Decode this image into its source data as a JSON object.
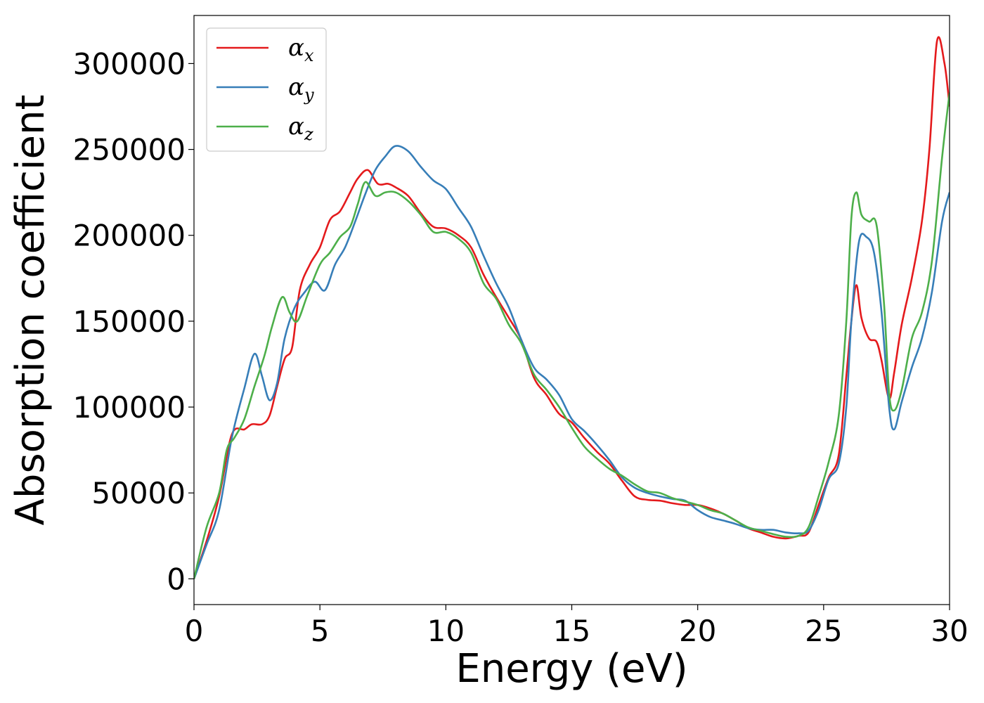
{
  "chart_data": {
    "type": "line",
    "title": "",
    "xlabel": "Energy (eV)",
    "ylabel": "Absorption coefficient",
    "xlim": [
      0,
      30
    ],
    "ylim": [
      -15000,
      328000
    ],
    "xticks": [
      0,
      5,
      10,
      15,
      20,
      25,
      30
    ],
    "xtick_labels": [
      "0",
      "5",
      "10",
      "15",
      "20",
      "25",
      "30"
    ],
    "yticks": [
      0,
      50000,
      100000,
      150000,
      200000,
      250000,
      300000
    ],
    "ytick_labels": [
      "0",
      "50000",
      "100000",
      "150000",
      "200000",
      "250000",
      "300000"
    ],
    "grid": false,
    "legend_position": "top-left",
    "legend": [
      {
        "symbol": "α",
        "sub": "x",
        "color": "#e41a1c"
      },
      {
        "symbol": "α",
        "sub": "y",
        "color": "#377eb8"
      },
      {
        "symbol": "α",
        "sub": "z",
        "color": "#4daf4a"
      }
    ],
    "series": [
      {
        "color": "#e41a1c",
        "points": [
          [
            0,
            0
          ],
          [
            0.5,
            22000
          ],
          [
            1,
            48000
          ],
          [
            1.5,
            84000
          ],
          [
            2,
            87000
          ],
          [
            2.3,
            90000
          ],
          [
            2.7,
            90000
          ],
          [
            3,
            95000
          ],
          [
            3.3,
            112000
          ],
          [
            3.6,
            128000
          ],
          [
            3.9,
            135000
          ],
          [
            4.2,
            168000
          ],
          [
            4.6,
            183000
          ],
          [
            5,
            193000
          ],
          [
            5.4,
            209000
          ],
          [
            5.8,
            214000
          ],
          [
            6.2,
            225000
          ],
          [
            6.5,
            233000
          ],
          [
            6.9,
            238000
          ],
          [
            7.3,
            230000
          ],
          [
            7.7,
            230000
          ],
          [
            8,
            228000
          ],
          [
            8.5,
            223000
          ],
          [
            9,
            213000
          ],
          [
            9.5,
            205000
          ],
          [
            10,
            204000
          ],
          [
            10.5,
            200000
          ],
          [
            11,
            193000
          ],
          [
            11.5,
            177000
          ],
          [
            12,
            164000
          ],
          [
            12.5,
            152000
          ],
          [
            13,
            139000
          ],
          [
            13.5,
            117000
          ],
          [
            14,
            107000
          ],
          [
            14.5,
            96000
          ],
          [
            15,
            91000
          ],
          [
            15.5,
            82000
          ],
          [
            16,
            74000
          ],
          [
            16.5,
            67000
          ],
          [
            17,
            57000
          ],
          [
            17.5,
            48000
          ],
          [
            18,
            46000
          ],
          [
            18.5,
            45500
          ],
          [
            19,
            44000
          ],
          [
            19.5,
            43000
          ],
          [
            20,
            43000
          ],
          [
            20.5,
            41000
          ],
          [
            21,
            38000
          ],
          [
            21.5,
            34000
          ],
          [
            22,
            29500
          ],
          [
            22.5,
            27000
          ],
          [
            23,
            24500
          ],
          [
            23.5,
            23500
          ],
          [
            24,
            25000
          ],
          [
            24.4,
            27000
          ],
          [
            24.8,
            43000
          ],
          [
            25.2,
            59000
          ],
          [
            25.6,
            72000
          ],
          [
            25.9,
            118000
          ],
          [
            26.1,
            150000
          ],
          [
            26.3,
            171000
          ],
          [
            26.5,
            152000
          ],
          [
            26.8,
            140000
          ],
          [
            27.1,
            138000
          ],
          [
            27.3,
            127000
          ],
          [
            27.6,
            105000
          ],
          [
            27.8,
            120000
          ],
          [
            28.1,
            148000
          ],
          [
            28.5,
            175000
          ],
          [
            28.9,
            208000
          ],
          [
            29.2,
            250000
          ],
          [
            29.5,
            313000
          ],
          [
            29.8,
            300000
          ],
          [
            30,
            275000
          ]
        ]
      },
      {
        "color": "#377eb8",
        "points": [
          [
            0,
            0
          ],
          [
            0.5,
            20000
          ],
          [
            1,
            40000
          ],
          [
            1.5,
            82000
          ],
          [
            2,
            111000
          ],
          [
            2.4,
            131000
          ],
          [
            2.7,
            118000
          ],
          [
            3,
            104000
          ],
          [
            3.3,
            114000
          ],
          [
            3.6,
            140000
          ],
          [
            4,
            158000
          ],
          [
            4.4,
            167000
          ],
          [
            4.8,
            173000
          ],
          [
            5.2,
            168000
          ],
          [
            5.6,
            183000
          ],
          [
            6,
            193000
          ],
          [
            6.4,
            208000
          ],
          [
            6.8,
            224000
          ],
          [
            7.2,
            238000
          ],
          [
            7.6,
            246000
          ],
          [
            8,
            252000
          ],
          [
            8.5,
            249000
          ],
          [
            9,
            240000
          ],
          [
            9.5,
            232000
          ],
          [
            10,
            227000
          ],
          [
            10.5,
            216000
          ],
          [
            11,
            205000
          ],
          [
            11.5,
            188000
          ],
          [
            12,
            172000
          ],
          [
            12.5,
            158000
          ],
          [
            13,
            139000
          ],
          [
            13.5,
            123000
          ],
          [
            14,
            116000
          ],
          [
            14.5,
            107000
          ],
          [
            15,
            93000
          ],
          [
            15.5,
            86000
          ],
          [
            16,
            78000
          ],
          [
            16.5,
            69000
          ],
          [
            17,
            59000
          ],
          [
            17.5,
            53000
          ],
          [
            18,
            50000
          ],
          [
            18.5,
            48000
          ],
          [
            19,
            46500
          ],
          [
            19.5,
            45500
          ],
          [
            20,
            40000
          ],
          [
            20.5,
            36000
          ],
          [
            21,
            34000
          ],
          [
            21.5,
            32000
          ],
          [
            22,
            29500
          ],
          [
            22.5,
            28500
          ],
          [
            23,
            28500
          ],
          [
            23.5,
            27000
          ],
          [
            24,
            26500
          ],
          [
            24.4,
            28000
          ],
          [
            24.8,
            40000
          ],
          [
            25.2,
            58000
          ],
          [
            25.6,
            67000
          ],
          [
            25.9,
            100000
          ],
          [
            26.1,
            150000
          ],
          [
            26.4,
            196000
          ],
          [
            26.7,
            199000
          ],
          [
            27,
            190000
          ],
          [
            27.3,
            155000
          ],
          [
            27.6,
            100000
          ],
          [
            27.8,
            87000
          ],
          [
            28.1,
            103000
          ],
          [
            28.5,
            123000
          ],
          [
            28.9,
            140000
          ],
          [
            29.3,
            167000
          ],
          [
            29.7,
            208000
          ],
          [
            30,
            225000
          ]
        ]
      },
      {
        "color": "#4daf4a",
        "points": [
          [
            0,
            0
          ],
          [
            0.5,
            30000
          ],
          [
            1,
            50000
          ],
          [
            1.3,
            75000
          ],
          [
            1.6,
            82000
          ],
          [
            2,
            93000
          ],
          [
            2.4,
            112000
          ],
          [
            2.8,
            130000
          ],
          [
            3.1,
            147000
          ],
          [
            3.5,
            164000
          ],
          [
            3.8,
            155000
          ],
          [
            4.1,
            150000
          ],
          [
            4.5,
            165000
          ],
          [
            5,
            183000
          ],
          [
            5.4,
            190000
          ],
          [
            5.8,
            199000
          ],
          [
            6.2,
            205000
          ],
          [
            6.5,
            218000
          ],
          [
            6.8,
            231000
          ],
          [
            7.2,
            223000
          ],
          [
            7.6,
            225000
          ],
          [
            8,
            225000
          ],
          [
            8.5,
            220000
          ],
          [
            9,
            212000
          ],
          [
            9.5,
            202000
          ],
          [
            10,
            202000
          ],
          [
            10.5,
            198000
          ],
          [
            11,
            190000
          ],
          [
            11.5,
            172000
          ],
          [
            12,
            163000
          ],
          [
            12.5,
            148000
          ],
          [
            13,
            137000
          ],
          [
            13.5,
            119000
          ],
          [
            14,
            110000
          ],
          [
            14.5,
            100000
          ],
          [
            15,
            88000
          ],
          [
            15.5,
            77000
          ],
          [
            16,
            70000
          ],
          [
            16.5,
            64000
          ],
          [
            17,
            60000
          ],
          [
            17.5,
            55000
          ],
          [
            18,
            51000
          ],
          [
            18.5,
            50000
          ],
          [
            19,
            47000
          ],
          [
            19.5,
            45000
          ],
          [
            20,
            43000
          ],
          [
            20.5,
            40000
          ],
          [
            21,
            38000
          ],
          [
            21.5,
            34000
          ],
          [
            22,
            30000
          ],
          [
            22.5,
            28000
          ],
          [
            23,
            26000
          ],
          [
            23.5,
            24500
          ],
          [
            24,
            25000
          ],
          [
            24.4,
            30000
          ],
          [
            24.8,
            48000
          ],
          [
            25.2,
            68000
          ],
          [
            25.6,
            95000
          ],
          [
            25.9,
            150000
          ],
          [
            26.1,
            210000
          ],
          [
            26.3,
            225000
          ],
          [
            26.5,
            212000
          ],
          [
            26.8,
            208000
          ],
          [
            27.1,
            206000
          ],
          [
            27.4,
            160000
          ],
          [
            27.6,
            108000
          ],
          [
            27.8,
            98000
          ],
          [
            28.1,
            110000
          ],
          [
            28.5,
            140000
          ],
          [
            28.9,
            155000
          ],
          [
            29.3,
            185000
          ],
          [
            29.7,
            245000
          ],
          [
            30,
            283000
          ]
        ]
      }
    ]
  }
}
